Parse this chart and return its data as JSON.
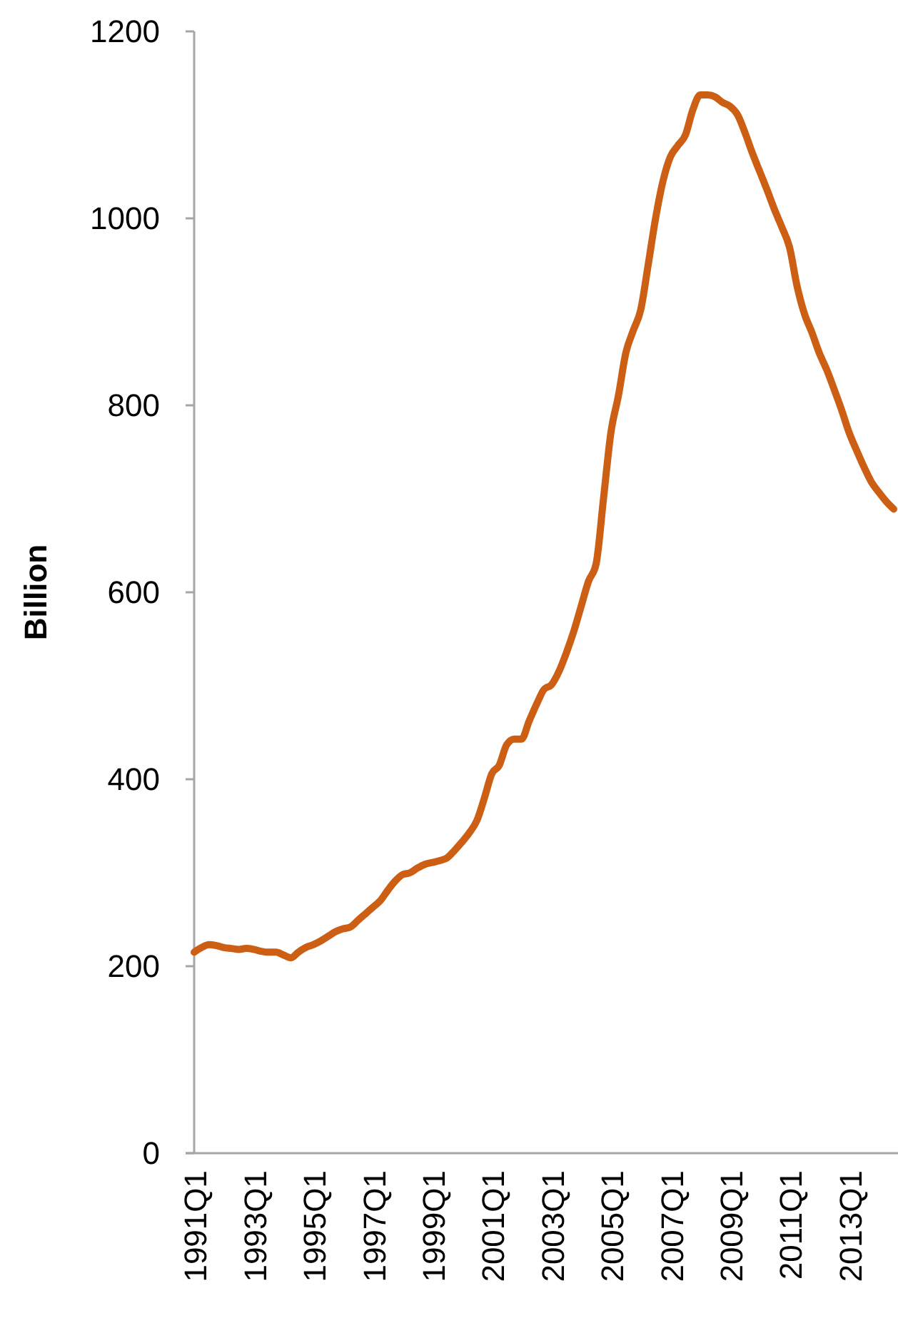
{
  "chart_data": {
    "type": "line",
    "ylabel": "Billion",
    "categories": [
      "1991Q1",
      null,
      null,
      null,
      null,
      null,
      null,
      null,
      "1993Q1",
      null,
      null,
      null,
      null,
      null,
      null,
      null,
      "1995Q1",
      null,
      null,
      null,
      null,
      null,
      null,
      null,
      "1997Q1",
      null,
      null,
      null,
      null,
      null,
      null,
      null,
      "1999Q1",
      null,
      null,
      null,
      null,
      null,
      null,
      null,
      "2001Q1",
      null,
      null,
      null,
      null,
      null,
      null,
      null,
      "2003Q1",
      null,
      null,
      null,
      null,
      null,
      null,
      null,
      "2005Q1",
      null,
      null,
      null,
      null,
      null,
      null,
      null,
      "2007Q1",
      null,
      null,
      null,
      null,
      null,
      null,
      null,
      "2009Q1",
      null,
      null,
      null,
      null,
      null,
      null,
      null,
      "2011Q1",
      null,
      null,
      null,
      null,
      null,
      null,
      null,
      "2013Q1",
      null,
      null,
      null,
      null,
      null,
      null
    ],
    "series": [
      {
        "color": "#cc5f14",
        "values": [
          215,
          220,
          223,
          222,
          220,
          219,
          218,
          219,
          218,
          216,
          215,
          215,
          212,
          209,
          215,
          220,
          223,
          227,
          232,
          237,
          240,
          242,
          249,
          256,
          263,
          270,
          281,
          291,
          298,
          300,
          305,
          309,
          311,
          313,
          316,
          324,
          333,
          343,
          356,
          380,
          406,
          415,
          437,
          443,
          443,
          462,
          480,
          496,
          501,
          515,
          535,
          558,
          585,
          612,
          630,
          700,
          771,
          810,
          856,
          880,
          902,
          950,
          1000,
          1040,
          1066,
          1078,
          1089,
          1116,
          1132,
          1132,
          1130,
          1124,
          1120,
          1111,
          1092,
          1070,
          1050,
          1030,
          1009,
          990,
          969,
          928,
          898,
          878,
          856,
          838,
          817,
          795,
          771,
          752,
          734,
          718,
          707,
          697,
          689
        ]
      }
    ],
    "ylim": [
      0,
      1200
    ],
    "yticks": [
      0,
      200,
      400,
      600,
      800,
      1000,
      1200
    ],
    "grid": false
  }
}
